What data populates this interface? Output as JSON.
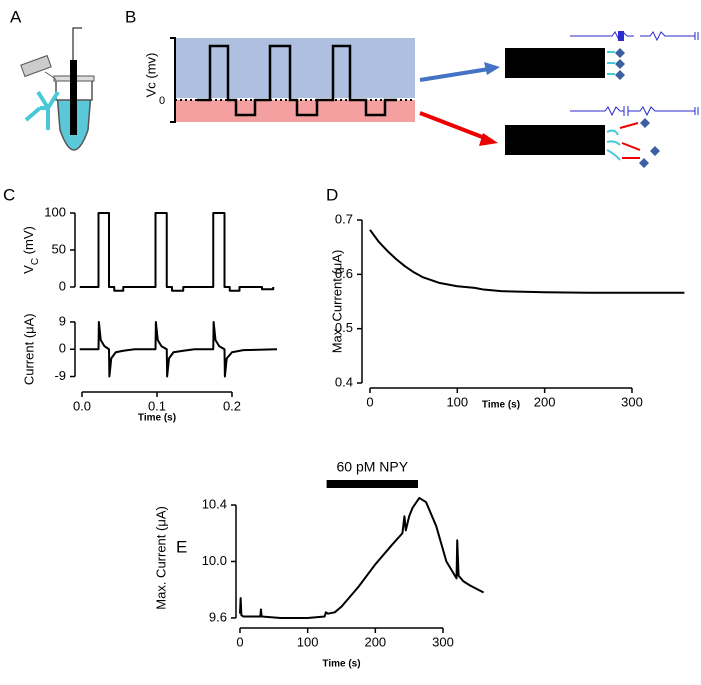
{
  "figure": {
    "panel_labels": [
      "A",
      "B",
      "C",
      "D",
      "E"
    ],
    "diagram_b": {
      "ylabel": "Vc (mv)",
      "zero": "0"
    }
  },
  "chart_data": [
    {
      "type": "line",
      "ylabel": [
        "V",
        "C",
        " (mV)"
      ],
      "color": "#000000",
      "x": [
        -0.003,
        0.022,
        0.022,
        0.036,
        0.036,
        0.043,
        0.043,
        0.055,
        0.055,
        0.098,
        0.098,
        0.113,
        0.113,
        0.12,
        0.12,
        0.135,
        0.135,
        0.175,
        0.175,
        0.19,
        0.19,
        0.197,
        0.197,
        0.21,
        0.21,
        0.24,
        0.24,
        0.255,
        0.255
      ],
      "values": [
        0,
        0,
        100,
        100,
        0,
        0,
        -5,
        -5,
        0,
        0,
        100,
        100,
        0,
        0,
        -5,
        -5,
        0,
        0,
        100,
        100,
        0,
        0,
        -5,
        -5,
        0,
        0,
        -3,
        -3,
        0
      ],
      "xlim": [
        -0.005,
        0.26
      ],
      "ylim": [
        -10,
        110
      ],
      "yticks": [
        0,
        50,
        100
      ]
    },
    {
      "type": "line",
      "ylabel": "Current (μA)",
      "xlabel": "Time (s)",
      "color": "#000000",
      "x": [
        -0.003,
        0.022,
        0.0225,
        0.025,
        0.03,
        0.036,
        0.0365,
        0.039,
        0.045,
        0.055,
        0.07,
        0.098,
        0.0985,
        0.101,
        0.106,
        0.113,
        0.1135,
        0.116,
        0.122,
        0.135,
        0.15,
        0.175,
        0.1755,
        0.178,
        0.183,
        0.19,
        0.1905,
        0.193,
        0.2,
        0.215,
        0.26
      ],
      "values": [
        0,
        0,
        9,
        3,
        1,
        0,
        -9,
        -3,
        -1,
        -0.5,
        0,
        0,
        9,
        3,
        1,
        0,
        -9,
        -3,
        -1,
        -0.5,
        0,
        0,
        9,
        3,
        1,
        0,
        -9,
        -3,
        -1,
        -0.3,
        0
      ],
      "xlim": [
        -0.005,
        0.26
      ],
      "ylim": [
        -11,
        11
      ],
      "yticks": [
        -9,
        0,
        9
      ],
      "xticks": [
        {
          "value": 0,
          "label": "0.0"
        },
        0.1,
        0.2
      ]
    },
    {
      "type": "line",
      "ylabel": "Max. Current (μA)",
      "xlabel": "Time (s)",
      "color": "#000000",
      "x": [
        0,
        10,
        20,
        30,
        40,
        50,
        60,
        80,
        100,
        120,
        130,
        150,
        200,
        250,
        300,
        360
      ],
      "values": [
        0.682,
        0.66,
        0.643,
        0.628,
        0.615,
        0.604,
        0.595,
        0.584,
        0.578,
        0.575,
        0.572,
        0.569,
        0.567,
        0.566,
        0.566,
        0.566
      ],
      "xlim": [
        -5,
        360
      ],
      "ylim": [
        0.4,
        0.7
      ],
      "yticks": [
        0.4,
        0.5,
        0.6,
        0.7
      ],
      "xticks": [
        0,
        100,
        200,
        300
      ]
    },
    {
      "type": "line",
      "ylabel": "Max. Current (μA)",
      "xlabel": "Time (s)",
      "color": "#000000",
      "x": [
        0,
        1,
        2,
        5,
        30,
        31,
        32,
        60,
        100,
        125,
        127,
        130,
        140,
        150,
        175,
        200,
        225,
        240,
        243,
        245,
        250,
        255,
        265,
        275,
        290,
        305,
        320,
        321,
        323,
        330,
        340,
        360
      ],
      "values": [
        9.63,
        9.74,
        9.62,
        9.61,
        9.61,
        9.66,
        9.61,
        9.6,
        9.6,
        9.61,
        9.64,
        9.63,
        9.64,
        9.68,
        9.82,
        9.98,
        10.12,
        10.2,
        10.32,
        10.22,
        10.32,
        10.38,
        10.45,
        10.42,
        10.25,
        10.0,
        9.88,
        10.15,
        9.9,
        9.86,
        9.83,
        9.78
      ],
      "xlim": [
        -5,
        365
      ],
      "ylim": [
        9.55,
        10.5
      ],
      "yticks": [
        9.6,
        {
          "value": 10,
          "label": "10.0"
        },
        10.4
      ],
      "xticks": [
        0,
        100,
        200,
        300
      ],
      "annotation": {
        "text": "60 pM NPY",
        "xrange": [
          128,
          263
        ]
      }
    }
  ]
}
